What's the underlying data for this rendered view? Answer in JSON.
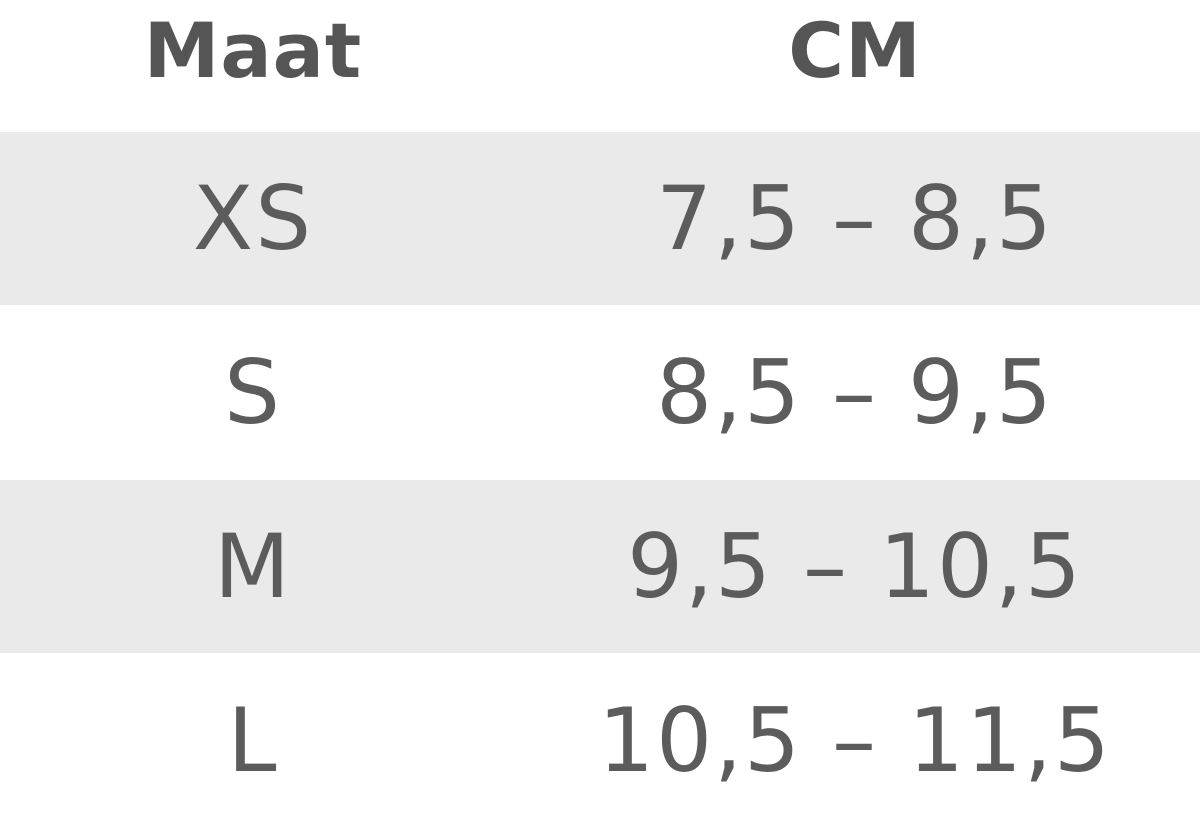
{
  "table": {
    "headers": [
      "Maat",
      "CM"
    ],
    "rows": [
      [
        "XS",
        "7,5 – 8,5"
      ],
      [
        "S",
        "8,5 – 9,5"
      ],
      [
        "M",
        "9,5 – 10,5"
      ],
      [
        "L",
        "10,5 – 11,5"
      ]
    ]
  },
  "colors": {
    "stripe": "#ebeaea",
    "text": "#5a5a5a",
    "background": "#ffffff"
  }
}
